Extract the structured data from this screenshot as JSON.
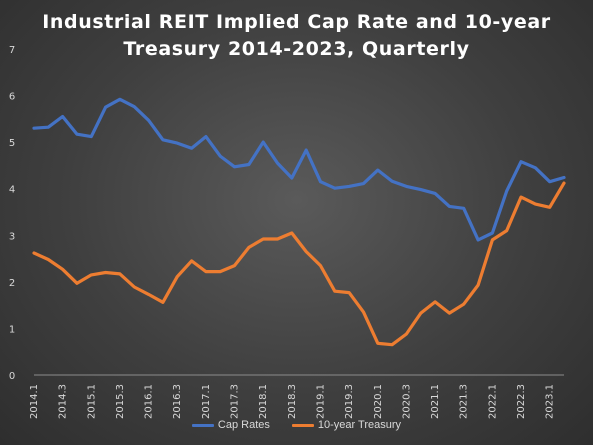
{
  "chart_data": {
    "type": "line",
    "title_line1": "Industrial  REIT  Implied  Cap  Rate  and  10-year",
    "title_line2": "Treasury  2014-2023,  Quarterly",
    "ylim": [
      0,
      7
    ],
    "y_ticks": [
      "0",
      "1",
      "2",
      "3",
      "4",
      "5",
      "6",
      "7"
    ],
    "x_tick_labels": [
      "2014.1",
      "2014.3",
      "2015.1",
      "2015.3",
      "2016.1",
      "2016.3",
      "2017.1",
      "2017.3",
      "2018.1",
      "2018.3",
      "2019.1",
      "2019.3",
      "2020.1",
      "2020.3",
      "2021.1",
      "2021.3",
      "2022.1",
      "2022.3",
      "2023.1"
    ],
    "grid": false,
    "legend_position": "bottom",
    "series": [
      {
        "name": "Cap Rates",
        "color": "#4472C4",
        "values": [
          5.3,
          5.32,
          5.55,
          5.17,
          5.12,
          5.75,
          5.92,
          5.76,
          5.47,
          5.05,
          4.98,
          4.87,
          5.12,
          4.7,
          4.47,
          4.52,
          5.0,
          4.55,
          4.23,
          4.83,
          4.15,
          4.01,
          4.05,
          4.11,
          4.4,
          4.16,
          4.05,
          3.98,
          3.9,
          3.62,
          3.58,
          2.9,
          3.05,
          3.95,
          4.58,
          4.45,
          4.15,
          4.24
        ]
      },
      {
        "name": "10-year Treasury",
        "color": "#ED7D31",
        "values": [
          2.62,
          2.48,
          2.27,
          1.97,
          2.15,
          2.2,
          2.17,
          1.89,
          1.73,
          1.56,
          2.11,
          2.45,
          2.22,
          2.22,
          2.35,
          2.74,
          2.92,
          2.92,
          3.05,
          2.65,
          2.35,
          1.8,
          1.77,
          1.35,
          0.68,
          0.65,
          0.88,
          1.33,
          1.57,
          1.33,
          1.52,
          1.93,
          2.9,
          3.1,
          3.82,
          3.67,
          3.6,
          4.12
        ]
      }
    ]
  }
}
